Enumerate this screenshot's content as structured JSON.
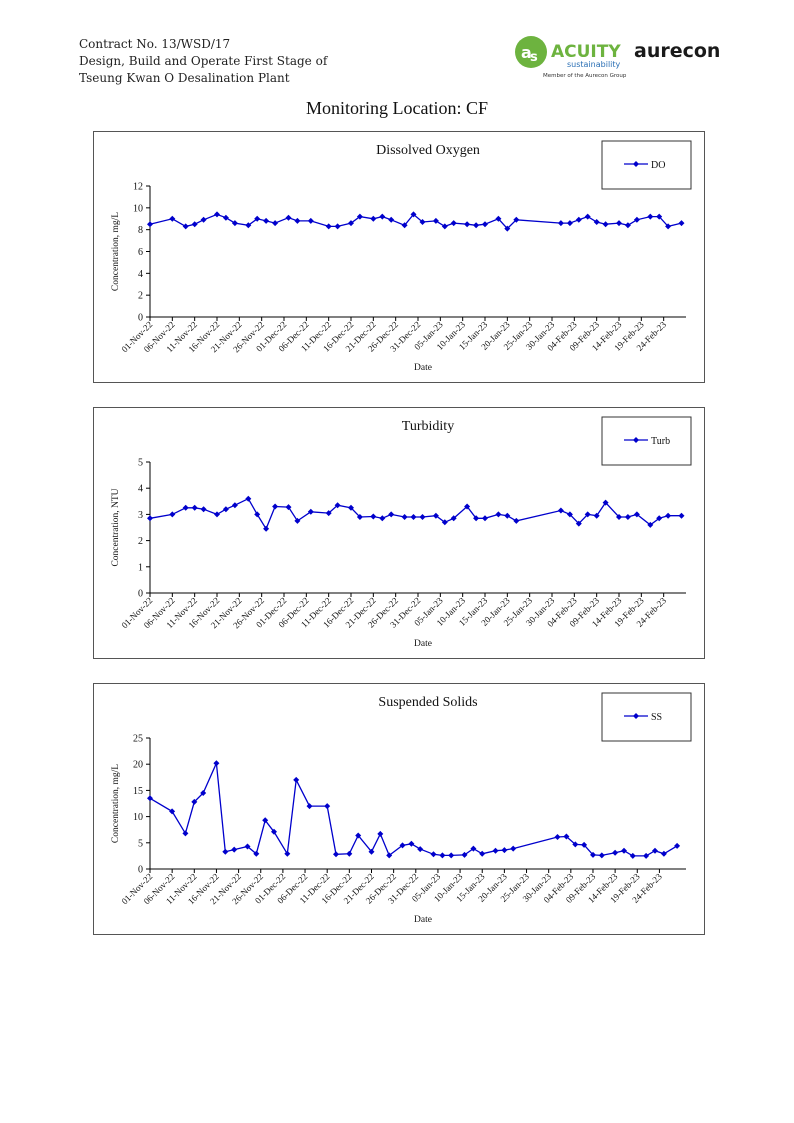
{
  "header": {
    "line1": "Contract No. 13/WSD/17",
    "line2": "Design, Build and Operate First Stage of",
    "line3": "Tseung Kwan O Desalination Plant"
  },
  "logos": {
    "acuity_name": "ACUITY",
    "acuity_sub": "sustainability",
    "acuity_tagline": "Member of the Aurecon Group",
    "aurecon_name": "aurecon",
    "acuity_green": "#6db33f",
    "acuity_blue": "#2a6fb4",
    "aurecon_color": "#1a1a1a"
  },
  "page_title": "Monitoring Location: CF",
  "series_color": "#0000cc",
  "chart_data": [
    {
      "type": "line",
      "title": "Dissolved Oxygen",
      "xlabel": "Date",
      "ylabel": "Concentration, mg/L",
      "ylim": [
        0,
        12
      ],
      "yticks": [
        0,
        2,
        4,
        6,
        8,
        10,
        12
      ],
      "xlim_day": [
        0,
        120
      ],
      "x_tick_labels": [
        "01-Nov-22",
        "06-Nov-22",
        "11-Nov-22",
        "16-Nov-22",
        "21-Nov-22",
        "26-Nov-22",
        "01-Dec-22",
        "06-Dec-22",
        "11-Dec-22",
        "16-Dec-22",
        "21-Dec-22",
        "26-Dec-22",
        "31-Dec-22",
        "05-Jan-23",
        "10-Jan-23",
        "15-Jan-23",
        "20-Jan-23",
        "25-Jan-23",
        "30-Jan-23",
        "04-Feb-23",
        "09-Feb-23",
        "14-Feb-23",
        "19-Feb-23",
        "24-Feb-23"
      ],
      "series": [
        {
          "name": "DO",
          "x": [
            "01-Nov-22",
            "06-Nov-22",
            "09-Nov-22",
            "11-Nov-22",
            "13-Nov-22",
            "16-Nov-22",
            "18-Nov-22",
            "20-Nov-22",
            "23-Nov-22",
            "25-Nov-22",
            "27-Nov-22",
            "29-Nov-22",
            "02-Dec-22",
            "04-Dec-22",
            "07-Dec-22",
            "11-Dec-22",
            "13-Dec-22",
            "16-Dec-22",
            "18-Dec-22",
            "21-Dec-22",
            "23-Dec-22",
            "25-Dec-22",
            "28-Dec-22",
            "30-Dec-22",
            "01-Jan-23",
            "04-Jan-23",
            "06-Jan-23",
            "08-Jan-23",
            "11-Jan-23",
            "13-Jan-23",
            "15-Jan-23",
            "18-Jan-23",
            "20-Jan-23",
            "22-Jan-23",
            "01-Feb-23",
            "03-Feb-23",
            "05-Feb-23",
            "07-Feb-23",
            "09-Feb-23",
            "11-Feb-23",
            "14-Feb-23",
            "16-Feb-23",
            "18-Feb-23",
            "21-Feb-23",
            "23-Feb-23",
            "25-Feb-23",
            "28-Feb-23"
          ],
          "y": [
            8.5,
            9.0,
            8.3,
            8.5,
            8.9,
            9.4,
            9.1,
            8.6,
            8.4,
            9.0,
            8.8,
            8.6,
            9.1,
            8.8,
            8.8,
            8.3,
            8.3,
            8.6,
            9.2,
            9.0,
            9.2,
            8.9,
            8.4,
            9.4,
            8.7,
            8.8,
            8.3,
            8.6,
            8.5,
            8.4,
            8.5,
            9.0,
            8.1,
            8.9,
            8.6,
            8.6,
            8.9,
            9.2,
            8.7,
            8.5,
            8.6,
            8.4,
            8.9,
            9.2,
            9.2,
            8.3,
            8.6
          ]
        }
      ],
      "legend": "top-right"
    },
    {
      "type": "line",
      "title": "Turbidity",
      "xlabel": "Date",
      "ylabel": "Concentration, NTU",
      "ylim": [
        0,
        5
      ],
      "yticks": [
        0,
        1,
        2,
        3,
        4,
        5
      ],
      "xlim_day": [
        0,
        120
      ],
      "x_tick_labels": [
        "01-Nov-22",
        "06-Nov-22",
        "11-Nov-22",
        "16-Nov-22",
        "21-Nov-22",
        "26-Nov-22",
        "01-Dec-22",
        "06-Dec-22",
        "11-Dec-22",
        "16-Dec-22",
        "21-Dec-22",
        "26-Dec-22",
        "31-Dec-22",
        "05-Jan-23",
        "10-Jan-23",
        "15-Jan-23",
        "20-Jan-23",
        "25-Jan-23",
        "30-Jan-23",
        "04-Feb-23",
        "09-Feb-23",
        "14-Feb-23",
        "19-Feb-23",
        "24-Feb-23"
      ],
      "series": [
        {
          "name": "Turb",
          "x": [
            "01-Nov-22",
            "06-Nov-22",
            "09-Nov-22",
            "11-Nov-22",
            "13-Nov-22",
            "16-Nov-22",
            "18-Nov-22",
            "20-Nov-22",
            "23-Nov-22",
            "25-Nov-22",
            "27-Nov-22",
            "29-Nov-22",
            "02-Dec-22",
            "04-Dec-22",
            "07-Dec-22",
            "11-Dec-22",
            "13-Dec-22",
            "16-Dec-22",
            "18-Dec-22",
            "21-Dec-22",
            "23-Dec-22",
            "25-Dec-22",
            "28-Dec-22",
            "30-Dec-22",
            "01-Jan-23",
            "04-Jan-23",
            "06-Jan-23",
            "08-Jan-23",
            "11-Jan-23",
            "13-Jan-23",
            "15-Jan-23",
            "18-Jan-23",
            "20-Jan-23",
            "22-Jan-23",
            "01-Feb-23",
            "03-Feb-23",
            "05-Feb-23",
            "07-Feb-23",
            "09-Feb-23",
            "11-Feb-23",
            "14-Feb-23",
            "16-Feb-23",
            "18-Feb-23",
            "21-Feb-23",
            "23-Feb-23",
            "25-Feb-23",
            "28-Feb-23"
          ],
          "y": [
            2.85,
            3.0,
            3.25,
            3.25,
            3.2,
            3.0,
            3.2,
            3.35,
            3.6,
            3.0,
            2.45,
            3.3,
            3.28,
            2.75,
            3.1,
            3.05,
            3.35,
            3.25,
            2.9,
            2.92,
            2.85,
            3.0,
            2.9,
            2.9,
            2.9,
            2.95,
            2.7,
            2.85,
            3.3,
            2.85,
            2.85,
            3.0,
            2.95,
            2.75,
            3.15,
            3.0,
            2.65,
            3.0,
            2.95,
            3.45,
            2.9,
            2.9,
            3.0,
            2.6,
            2.85,
            2.95,
            2.95
          ]
        }
      ],
      "legend": "top-right"
    },
    {
      "type": "line",
      "title": "Suspended Solids",
      "xlabel": "Date",
      "ylabel": "Concentration, mg/L",
      "ylim": [
        0,
        25
      ],
      "yticks": [
        0,
        5,
        10,
        15,
        20,
        25
      ],
      "xlim_day": [
        0,
        121
      ],
      "x_tick_labels": [
        "01-Nov-22",
        "06-Nov-22",
        "11-Nov-22",
        "16-Nov-22",
        "21-Nov-22",
        "26-Nov-22",
        "01-Dec-22",
        "06-Dec-22",
        "11-Dec-22",
        "16-Dec-22",
        "21-Dec-22",
        "26-Dec-22",
        "31-Dec-22",
        "05-Jan-23",
        "10-Jan-23",
        "15-Jan-23",
        "20-Jan-23",
        "25-Jan-23",
        "30-Jan-23",
        "04-Feb-23",
        "09-Feb-23",
        "14-Feb-23",
        "19-Feb-23",
        "24-Feb-23"
      ],
      "series": [
        {
          "name": "SS",
          "x": [
            "01-Nov-22",
            "06-Nov-22",
            "09-Nov-22",
            "11-Nov-22",
            "13-Nov-22",
            "16-Nov-22",
            "18-Nov-22",
            "20-Nov-22",
            "23-Nov-22",
            "25-Nov-22",
            "27-Nov-22",
            "29-Nov-22",
            "02-Dec-22",
            "04-Dec-22",
            "07-Dec-22",
            "11-Dec-22",
            "13-Dec-22",
            "16-Dec-22",
            "18-Dec-22",
            "21-Dec-22",
            "23-Dec-22",
            "25-Dec-22",
            "28-Dec-22",
            "30-Dec-22",
            "01-Jan-23",
            "04-Jan-23",
            "06-Jan-23",
            "08-Jan-23",
            "11-Jan-23",
            "13-Jan-23",
            "15-Jan-23",
            "18-Jan-23",
            "20-Jan-23",
            "22-Jan-23",
            "01-Feb-23",
            "03-Feb-23",
            "05-Feb-23",
            "07-Feb-23",
            "09-Feb-23",
            "11-Feb-23",
            "14-Feb-23",
            "16-Feb-23",
            "18-Feb-23",
            "21-Feb-23",
            "23-Feb-23",
            "25-Feb-23",
            "28-Feb-23"
          ],
          "y": [
            13.5,
            11.0,
            6.8,
            12.8,
            14.5,
            20.2,
            3.3,
            3.7,
            4.3,
            2.9,
            9.3,
            7.1,
            2.9,
            17.0,
            12.0,
            12.0,
            2.8,
            2.9,
            6.4,
            3.3,
            6.7,
            2.6,
            4.5,
            4.8,
            3.8,
            2.8,
            2.6,
            2.6,
            2.7,
            3.9,
            2.9,
            3.5,
            3.6,
            3.9,
            6.1,
            6.2,
            4.7,
            4.6,
            2.7,
            2.6,
            3.1,
            3.5,
            2.5,
            2.5,
            3.5,
            2.9,
            4.4
          ]
        }
      ],
      "legend": "top-right"
    }
  ]
}
